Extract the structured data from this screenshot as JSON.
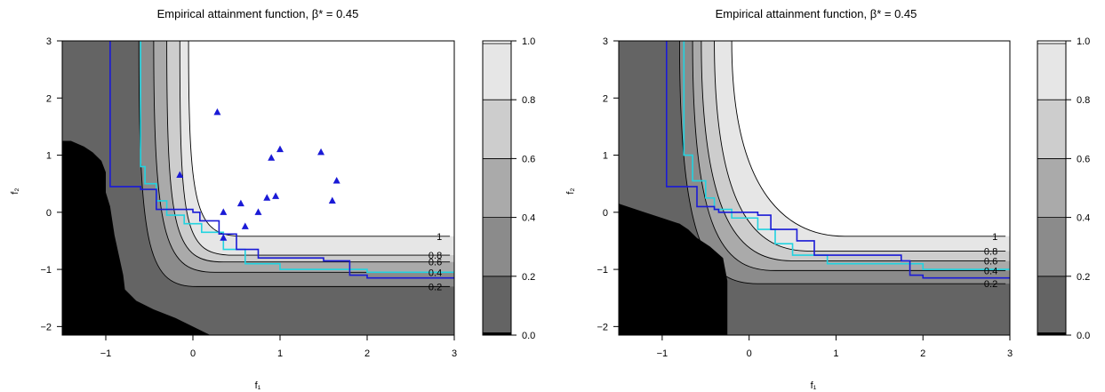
{
  "colors": {
    "bands": [
      "#000000",
      "#646464",
      "#8b8b8b",
      "#aaaaaa",
      "#cdcdcd",
      "#e6e6e6",
      "#ffffff"
    ],
    "contour": "#000000",
    "front_blue": "#1a1ad6",
    "front_cyan": "#22d3e0",
    "points": "#1a1ad6"
  },
  "chart_data": [
    {
      "type": "contour",
      "title": "Empirical attainment function, β* = 0.45",
      "xlabel": "f₁",
      "ylabel": "f₂",
      "xlim": [
        -1.5,
        3
      ],
      "ylim": [
        -2.15,
        3
      ],
      "x_ticks": [
        -1,
        0,
        1,
        2,
        3
      ],
      "y_ticks": [
        -2,
        -1,
        0,
        1,
        2,
        3
      ],
      "x_tick_labels": [
        "−1",
        "0",
        "1",
        "2",
        "3"
      ],
      "y_tick_labels": [
        "−2",
        "−1",
        "0",
        "1",
        "2",
        "3"
      ],
      "colorbar": {
        "levels": [
          0.0,
          0.2,
          0.4,
          0.6,
          0.8,
          1.0
        ],
        "labels": [
          "0.0",
          "0.2",
          "0.4",
          "0.6",
          "0.8",
          "1.0"
        ]
      },
      "contours": [
        {
          "level": "1",
          "knee_x": 0.3,
          "knee_y": -0.4,
          "vertical_x": -0.05,
          "horizontal_y": -0.42
        },
        {
          "level": "0.8",
          "knee_x": 0.15,
          "knee_y": -0.55,
          "vertical_x": -0.15,
          "horizontal_y": -0.75
        },
        {
          "level": "0.6",
          "knee_x": 0.05,
          "knee_y": -0.7,
          "vertical_x": -0.3,
          "horizontal_y": -0.87
        },
        {
          "level": "0.4",
          "knee_x": -0.05,
          "knee_y": -0.85,
          "vertical_x": -0.45,
          "horizontal_y": -1.05
        },
        {
          "level": "0.2",
          "knee_x": -0.25,
          "knee_y": -1.05,
          "vertical_x": -0.62,
          "horizontal_y": -1.3
        }
      ],
      "front_blue": [
        [
          -0.95,
          3.0
        ],
        [
          -0.95,
          0.45
        ],
        [
          -0.6,
          0.4
        ],
        [
          -0.42,
          0.28
        ],
        [
          -0.42,
          0.05
        ],
        [
          0.0,
          0.0
        ],
        [
          0.08,
          -0.15
        ],
        [
          0.3,
          -0.38
        ],
        [
          0.5,
          -0.65
        ],
        [
          0.75,
          -0.8
        ],
        [
          1.5,
          -0.85
        ],
        [
          1.8,
          -1.1
        ],
        [
          2.0,
          -1.15
        ],
        [
          3.0,
          -1.15
        ]
      ],
      "front_cyan": [
        [
          -0.6,
          3.0
        ],
        [
          -0.6,
          0.8
        ],
        [
          -0.55,
          0.5
        ],
        [
          -0.42,
          0.2
        ],
        [
          -0.3,
          -0.05
        ],
        [
          -0.1,
          -0.2
        ],
        [
          0.1,
          -0.35
        ],
        [
          0.35,
          -0.65
        ],
        [
          0.6,
          -0.9
        ],
        [
          1.0,
          -1.0
        ],
        [
          2.0,
          -1.05
        ],
        [
          3.0,
          -1.05
        ]
      ],
      "points": [
        [
          0.28,
          1.75
        ],
        [
          -0.15,
          0.65
        ],
        [
          0.9,
          0.95
        ],
        [
          1.0,
          1.1
        ],
        [
          1.47,
          1.05
        ],
        [
          1.65,
          0.55
        ],
        [
          0.85,
          0.25
        ],
        [
          0.75,
          0.0
        ],
        [
          0.95,
          0.28
        ],
        [
          0.35,
          0.0
        ],
        [
          0.55,
          0.15
        ],
        [
          0.6,
          -0.25
        ],
        [
          1.6,
          0.2
        ],
        [
          0.35,
          -0.45
        ]
      ],
      "black_region": [
        [
          -1.5,
          -2.15
        ],
        [
          -1.5,
          1.25
        ],
        [
          -1.4,
          1.25
        ],
        [
          -1.25,
          1.15
        ],
        [
          -1.15,
          1.05
        ],
        [
          -1.05,
          0.9
        ],
        [
          -1.0,
          0.7
        ],
        [
          -1.0,
          0.35
        ],
        [
          -0.95,
          0.1
        ],
        [
          -0.9,
          -0.4
        ],
        [
          -0.85,
          -0.75
        ],
        [
          -0.8,
          -1.1
        ],
        [
          -0.78,
          -1.35
        ],
        [
          -0.65,
          -1.55
        ],
        [
          -0.45,
          -1.7
        ],
        [
          -0.2,
          -1.85
        ],
        [
          0.0,
          -2.0
        ],
        [
          0.2,
          -2.15
        ]
      ]
    },
    {
      "type": "contour",
      "title": "Empirical attainment function, β* = 0.45",
      "xlabel": "f₁",
      "ylabel": "f₂",
      "xlim": [
        -1.5,
        3
      ],
      "ylim": [
        -2.15,
        3
      ],
      "x_ticks": [
        -1,
        0,
        1,
        2,
        3
      ],
      "y_ticks": [
        -2,
        -1,
        0,
        1,
        2,
        3
      ],
      "x_tick_labels": [
        "−1",
        "0",
        "1",
        "2",
        "3"
      ],
      "y_tick_labels": [
        "−2",
        "−1",
        "0",
        "1",
        "2",
        "3"
      ],
      "colorbar": {
        "levels": [
          0.0,
          0.2,
          0.4,
          0.6,
          0.8,
          1.0
        ],
        "labels": [
          "0.0",
          "0.2",
          "0.4",
          "0.6",
          "0.8",
          "1.0"
        ]
      },
      "contours": [
        {
          "level": "1",
          "knee_x": 0.8,
          "knee_y": -0.2,
          "vertical_x": -0.2,
          "horizontal_y": -0.42
        },
        {
          "level": "0.8",
          "knee_x": 0.4,
          "knee_y": -0.5,
          "vertical_x": -0.4,
          "horizontal_y": -0.68
        },
        {
          "level": "0.6",
          "knee_x": 0.2,
          "knee_y": -0.65,
          "vertical_x": -0.55,
          "horizontal_y": -0.85
        },
        {
          "level": "0.4",
          "knee_x": 0.0,
          "knee_y": -0.85,
          "vertical_x": -0.65,
          "horizontal_y": -1.02
        },
        {
          "level": "0.2",
          "knee_x": -0.2,
          "knee_y": -1.05,
          "vertical_x": -0.8,
          "horizontal_y": -1.25
        }
      ],
      "front_blue": [
        [
          -0.95,
          3.0
        ],
        [
          -0.95,
          0.45
        ],
        [
          -0.6,
          0.3
        ],
        [
          -0.6,
          0.1
        ],
        [
          -0.4,
          0.05
        ],
        [
          -0.35,
          0.0
        ],
        [
          0.1,
          -0.05
        ],
        [
          0.25,
          -0.3
        ],
        [
          0.55,
          -0.5
        ],
        [
          0.75,
          -0.75
        ],
        [
          1.75,
          -0.85
        ],
        [
          1.85,
          -1.1
        ],
        [
          2.0,
          -1.15
        ],
        [
          3.0,
          -1.15
        ]
      ],
      "front_cyan": [
        [
          -0.75,
          3.0
        ],
        [
          -0.75,
          1.0
        ],
        [
          -0.65,
          0.55
        ],
        [
          -0.5,
          0.25
        ],
        [
          -0.4,
          0.05
        ],
        [
          -0.2,
          -0.1
        ],
        [
          0.1,
          -0.3
        ],
        [
          0.3,
          -0.55
        ],
        [
          0.5,
          -0.75
        ],
        [
          0.9,
          -0.9
        ],
        [
          2.0,
          -1.0
        ],
        [
          3.0,
          -1.0
        ]
      ],
      "points": [],
      "black_region": [
        [
          -1.5,
          -2.15
        ],
        [
          -1.5,
          0.15
        ],
        [
          -1.4,
          0.1
        ],
        [
          -1.2,
          0.0
        ],
        [
          -1.0,
          -0.1
        ],
        [
          -0.8,
          -0.2
        ],
        [
          -0.7,
          -0.3
        ],
        [
          -0.6,
          -0.45
        ],
        [
          -0.45,
          -0.6
        ],
        [
          -0.3,
          -0.8
        ],
        [
          -0.25,
          -1.2
        ],
        [
          -0.25,
          -2.15
        ]
      ]
    }
  ]
}
